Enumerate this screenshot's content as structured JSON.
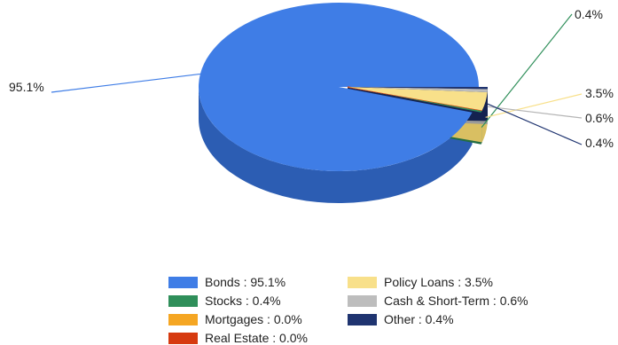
{
  "chart_data": {
    "type": "pie",
    "title": "",
    "three_d": true,
    "legend_position": "bottom",
    "slices": [
      {
        "name": "Bonds",
        "value": 95.1,
        "label": "95.1%",
        "legend": "Bonds : 95.1%",
        "color": "#3f7de6",
        "side": "#2c5db3"
      },
      {
        "name": "Stocks",
        "value": 0.4,
        "label": "0.4%",
        "legend": "Stocks : 0.4%",
        "color": "#2f8f5a",
        "side": "#226c43"
      },
      {
        "name": "Mortgages",
        "value": 0.0,
        "label": "",
        "legend": "Mortgages : 0.0%",
        "color": "#f5a623",
        "side": "#c7861b"
      },
      {
        "name": "Real Estate",
        "value": 0.0,
        "label": "",
        "legend": "Real Estate : 0.0%",
        "color": "#d63a0f",
        "side": "#a82d0b"
      },
      {
        "name": "Policy Loans",
        "value": 3.5,
        "label": "3.5%",
        "legend": "Policy Loans : 3.5%",
        "color": "#f8e08a",
        "side": "#d9bf62"
      },
      {
        "name": "Cash & Short-Term",
        "value": 0.6,
        "label": "0.6%",
        "legend": "Cash & Short-Term : 0.6%",
        "color": "#bdbdbd",
        "side": "#9a9a9a"
      },
      {
        "name": "Other",
        "value": 0.4,
        "label": "0.4%",
        "legend": "Other : 0.4%",
        "color": "#1f3470",
        "side": "#142250"
      }
    ]
  }
}
